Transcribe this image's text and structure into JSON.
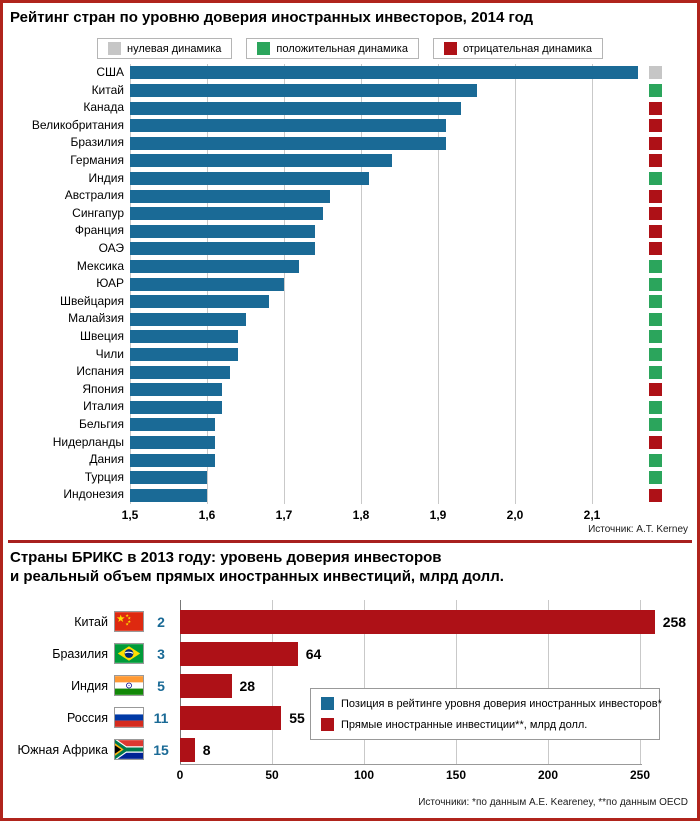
{
  "colors": {
    "bar_blue": "#1a6a96",
    "bar_red": "#ae1117",
    "positive": "#2ba55c",
    "negative": "#ae1117",
    "zero": "#c6c6c6",
    "frame": "#b0241c",
    "divider": "#a8201f",
    "grid": "#c9c9c9"
  },
  "chart_data": [
    {
      "type": "bar",
      "orientation": "horizontal",
      "title": "Рейтинг стран по уровню доверия иностранных инвесторов, 2014 год",
      "source": "Источник: A.T. Kerney",
      "xlabel": "",
      "ylabel": "",
      "xlim": [
        1.5,
        2.17
      ],
      "grid": true,
      "legend_position": "top",
      "legend": [
        {
          "key": "zero",
          "label": "нулевая динамика",
          "color": "#c6c6c6"
        },
        {
          "key": "positive",
          "label": "положительная динамика",
          "color": "#2ba55c"
        },
        {
          "key": "negative",
          "label": "отрицательная динамика",
          "color": "#ae1117"
        }
      ],
      "xticks": [
        "1,5",
        "1,6",
        "1,7",
        "1,8",
        "1,9",
        "2,0",
        "2,1"
      ],
      "xtick_values": [
        1.5,
        1.6,
        1.7,
        1.8,
        1.9,
        2.0,
        2.1
      ],
      "categories": [
        "США",
        "Китай",
        "Канада",
        "Великобритания",
        "Бразилия",
        "Германия",
        "Индия",
        "Австралия",
        "Сингапур",
        "Франция",
        "ОАЭ",
        "Мексика",
        "ЮАР",
        "Швейцария",
        "Малайзия",
        "Швеция",
        "Чили",
        "Испания",
        "Япония",
        "Италия",
        "Бельгия",
        "Нидерланды",
        "Дания",
        "Турция",
        "Индонезия"
      ],
      "values": [
        2.16,
        1.95,
        1.93,
        1.91,
        1.91,
        1.84,
        1.81,
        1.76,
        1.75,
        1.74,
        1.74,
        1.72,
        1.7,
        1.68,
        1.65,
        1.64,
        1.64,
        1.63,
        1.62,
        1.62,
        1.61,
        1.61,
        1.61,
        1.6,
        1.6
      ],
      "dynamics": [
        "zero",
        "positive",
        "negative",
        "negative",
        "negative",
        "negative",
        "positive",
        "negative",
        "negative",
        "negative",
        "negative",
        "positive",
        "positive",
        "positive",
        "positive",
        "positive",
        "positive",
        "positive",
        "negative",
        "positive",
        "positive",
        "negative",
        "positive",
        "positive",
        "negative"
      ]
    },
    {
      "type": "bar",
      "orientation": "horizontal",
      "title_line1": "Страны БРИКС в 2013 году: уровень доверия инвесторов",
      "title_line2": "и реальный объем прямых иностранных инвестиций, млрд долл.",
      "source": "Источники: *по данным A.E. Keareney, **по данным OECD",
      "xlabel": "",
      "ylabel": "",
      "xlim": [
        0,
        250
      ],
      "grid": true,
      "legend_position": "inside-right",
      "legend": [
        {
          "key": "rating",
          "label": "Позиция в рейтинге уровня доверия иностранных инвесторов*",
          "color": "#1a6a96"
        },
        {
          "key": "fdi",
          "label": "Прямые иностранные инвестиции**, млрд долл.",
          "color": "#ae1117"
        }
      ],
      "xticks": [
        "0",
        "50",
        "100",
        "150",
        "200",
        "250"
      ],
      "xtick_values": [
        0,
        50,
        100,
        150,
        200,
        250
      ],
      "categories": [
        "Китай",
        "Бразилия",
        "Индия",
        "Россия",
        "Южная Африка"
      ],
      "flags": [
        "china",
        "brazil",
        "india",
        "russia",
        "south-africa"
      ],
      "rating_positions": [
        2,
        3,
        5,
        11,
        15
      ],
      "values": [
        258,
        64,
        28,
        55,
        8
      ]
    }
  ]
}
